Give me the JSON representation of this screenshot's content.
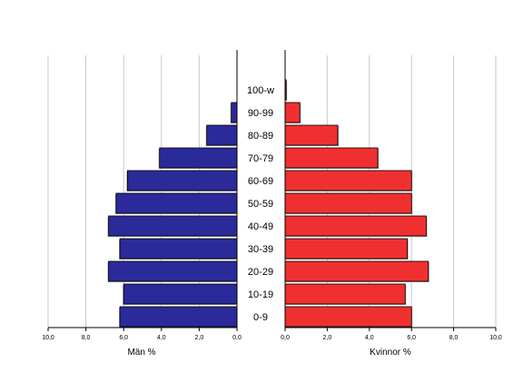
{
  "chart_data": {
    "type": "bar",
    "orientation": "horizontal",
    "subtype": "population-pyramid",
    "categories": [
      "0-9",
      "10-19",
      "20-29",
      "30-39",
      "40-49",
      "50-59",
      "60-69",
      "70-79",
      "80-89",
      "90-99",
      "100-w"
    ],
    "series": [
      {
        "name": "Män %",
        "color": "#2b2a9a",
        "values": [
          6.2,
          6.0,
          6.8,
          6.2,
          6.8,
          6.4,
          5.8,
          4.1,
          1.6,
          0.3,
          0.0
        ]
      },
      {
        "name": "Kvinnor %",
        "color": "#f03030",
        "values": [
          6.0,
          5.7,
          6.8,
          5.8,
          6.7,
          6.0,
          6.0,
          4.4,
          2.5,
          0.7,
          0.05
        ]
      }
    ],
    "xlabel_left": "Män %",
    "xlabel_right": "Kvinnor %",
    "xlim": [
      0,
      10
    ],
    "tick_labels": [
      "0,0",
      "2,0",
      "4,0",
      "6,0",
      "8,0",
      "10,0"
    ],
    "grid": true
  }
}
